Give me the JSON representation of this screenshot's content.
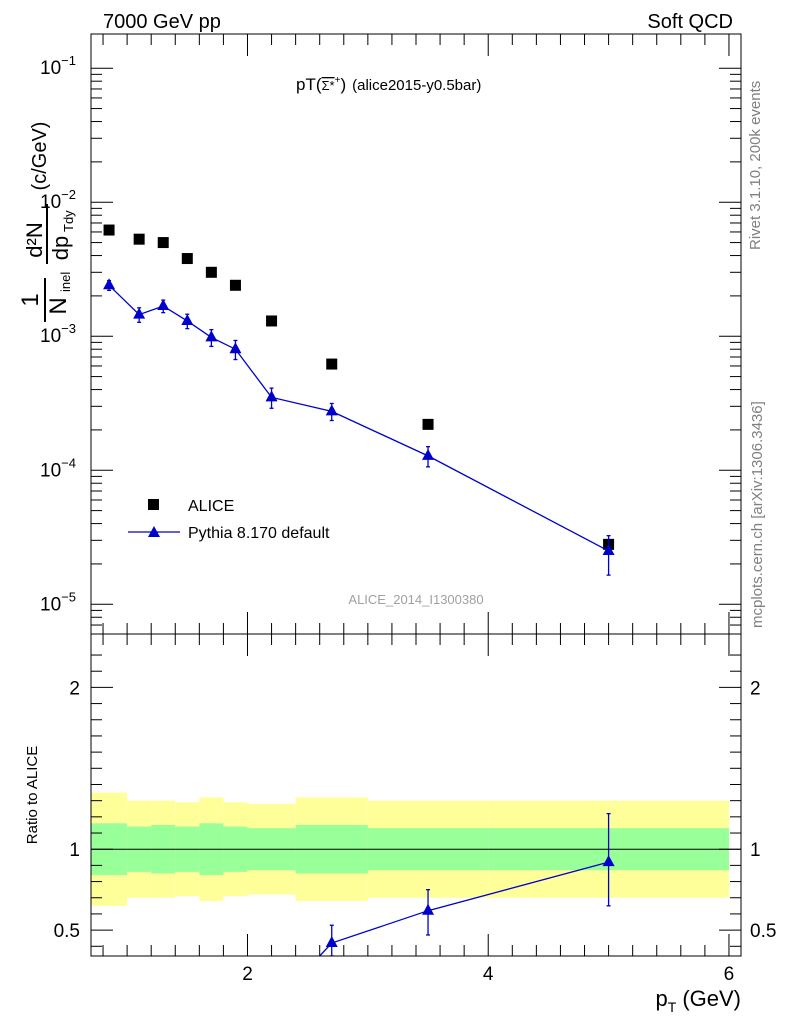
{
  "header": {
    "left": "7000 GeV pp",
    "right": "Soft QCD"
  },
  "side_labels": {
    "rivet": "Rivet 3.1.10,  200k events",
    "mcplots": "mcplots.cern.ch [arXiv:1306.3436]"
  },
  "chart_data": [
    {
      "type": "scatter",
      "title_prefix": "pT(",
      "title_particle": "Σ*",
      "title_sup": "+",
      "title_suffix": ")",
      "title_tag": "(alice2015-y0.5bar)",
      "ylabel": {
        "one": "1",
        "n": "N",
        "inel": "inel",
        "dn": "d²N",
        "dp": "dp",
        "tdy": "Tdy",
        "units": "(c/GeV)"
      },
      "watermark": "ALICE_2014_I1300380",
      "yscale": "log",
      "xlim": [
        0.7,
        6.1
      ],
      "ylim": [
        6e-06,
        0.18
      ],
      "yticks": [
        {
          "value": 0.1,
          "mant": "10",
          "exp": "−1"
        },
        {
          "value": 0.01,
          "mant": "10",
          "exp": "−2"
        },
        {
          "value": 0.001,
          "mant": "10",
          "exp": "−3"
        },
        {
          "value": 0.0001,
          "mant": "10",
          "exp": "−4"
        },
        {
          "value": 1e-05,
          "mant": "10",
          "exp": "−5"
        }
      ],
      "legend": [
        {
          "label": "ALICE",
          "marker": "square"
        },
        {
          "label": "Pythia 8.170 default",
          "marker": "triangle"
        }
      ],
      "series": [
        {
          "name": "ALICE",
          "color": "#000000",
          "x": [
            0.85,
            1.1,
            1.3,
            1.5,
            1.7,
            1.9,
            2.2,
            2.7,
            3.5,
            5.0
          ],
          "y": [
            0.0062,
            0.0053,
            0.005,
            0.0038,
            0.003,
            0.0024,
            0.0013,
            0.00062,
            0.00022,
            2.8e-05
          ]
        },
        {
          "name": "Pythia 8.170 default",
          "color": "#0000cc",
          "x": [
            0.85,
            1.1,
            1.3,
            1.5,
            1.7,
            1.9,
            2.2,
            2.7,
            3.5,
            5.0
          ],
          "y": [
            0.0024,
            0.00145,
            0.00168,
            0.0013,
            0.00098,
            0.0008,
            0.00035,
            0.000275,
            0.000128,
            2.5e-05
          ],
          "yerr_low": [
            0.0002,
            0.00018,
            0.00018,
            0.00016,
            0.00014,
            0.00013,
            6e-05,
            4e-05,
            2.2e-05,
            8.5e-06
          ],
          "yerr_high": [
            0.0002,
            0.00018,
            0.00018,
            0.00016,
            0.00014,
            0.00013,
            6e-05,
            4e-05,
            2.2e-05,
            7.5e-06
          ]
        }
      ]
    },
    {
      "type": "line",
      "ylabel": "Ratio to ALICE",
      "xlabel": {
        "p": "p",
        "sub": "T",
        "units": "(GeV)"
      },
      "xlim": [
        0.7,
        6.1
      ],
      "ylim": [
        0.34,
        2.33
      ],
      "xticks": [
        2,
        4,
        6
      ],
      "yticks": [
        0.5,
        1,
        2
      ],
      "reference": 1.0,
      "bands": {
        "bin_edges": [
          0.7,
          1.0,
          1.2,
          1.4,
          1.6,
          1.8,
          2.0,
          2.4,
          3.0,
          4.0,
          6.0
        ],
        "green_low": [
          0.84,
          0.86,
          0.85,
          0.86,
          0.84,
          0.86,
          0.87,
          0.85,
          0.87,
          0.87
        ],
        "green_high": [
          1.16,
          1.14,
          1.15,
          1.14,
          1.16,
          1.14,
          1.13,
          1.15,
          1.13,
          1.13
        ],
        "yellow_low": [
          0.65,
          0.7,
          0.7,
          0.71,
          0.68,
          0.71,
          0.72,
          0.68,
          0.7,
          0.7
        ],
        "yellow_high": [
          1.35,
          1.3,
          1.3,
          1.29,
          1.32,
          1.29,
          1.28,
          1.32,
          1.3,
          1.3
        ]
      },
      "series": [
        {
          "name": "Pythia 8.170 default",
          "color": "#0000cc",
          "x": [
            2.6,
            2.7,
            3.5,
            5.0
          ],
          "y": [
            0.34,
            0.42,
            0.62,
            0.92
          ],
          "yerr_low": [
            0,
            0.08,
            0.15,
            0.27
          ],
          "yerr_high": [
            0,
            0.11,
            0.13,
            0.3
          ],
          "show_marker": [
            false,
            true,
            true,
            true
          ]
        }
      ]
    }
  ]
}
